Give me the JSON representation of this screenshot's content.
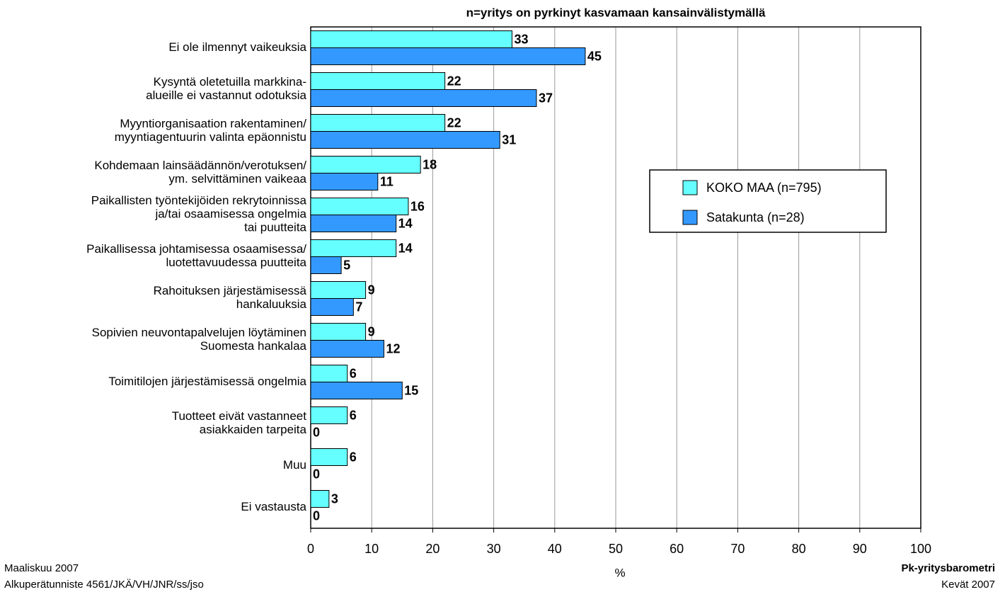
{
  "chart_data": {
    "type": "hbar",
    "title": "n=yritys on pyrkinyt kasvamaan kansainvälistymällä",
    "x_label": "%",
    "categories": [
      "Ei ole ilmennyt vaikeuksia",
      "Kysyntä oletetuilla markkina-\nalueille ei vastannut odotuksia",
      "Myyntiorganisaation rakentaminen/\nmyyntiagentuurin valinta epäonnistu",
      "Kohdemaan lainsäädännön/verotuksen/\nym. selvittäminen vaikeaa",
      "Paikallisten työntekijöiden rekrytoinnissa\nja/tai osaamisessa ongelmia\ntai puutteita",
      "Paikallisessa johtamisessa osaamisessa/\nluotettavuudessa puutteita",
      "Rahoituksen järjestämisessä\nhankaluuksia",
      "Sopivien neuvontapalvelujen löytäminen\nSuomesta hankalaa",
      "Toimitilojen järjestämisessä ongelmia",
      "Tuotteet eivät vastanneet\nasiakkaiden tarpeita",
      "Muu",
      "Ei vastausta"
    ],
    "series": [
      {
        "name": "KOKO MAA (n=795)",
        "color": "#66ffff",
        "values": [
          33,
          22,
          22,
          18,
          16,
          14,
          9,
          9,
          6,
          6,
          6,
          3
        ]
      },
      {
        "name": "Satakunta (n=28)",
        "color": "#3399ff",
        "values": [
          45,
          37,
          31,
          11,
          14,
          5,
          7,
          12,
          15,
          0,
          0,
          0
        ]
      }
    ],
    "xlim": [
      0,
      100
    ],
    "xticks": [
      0,
      10,
      20,
      30,
      40,
      50,
      60,
      70,
      80,
      90,
      100
    ],
    "grid": true,
    "legend": "right",
    "footer_left": [
      "Maaliskuu 2007",
      "Alkuperätunniste 4561/JKÄ/VH/JNR/ss/jso"
    ],
    "footer_right": [
      "Pk-yritysbarometri",
      "Kevät 2007"
    ]
  }
}
